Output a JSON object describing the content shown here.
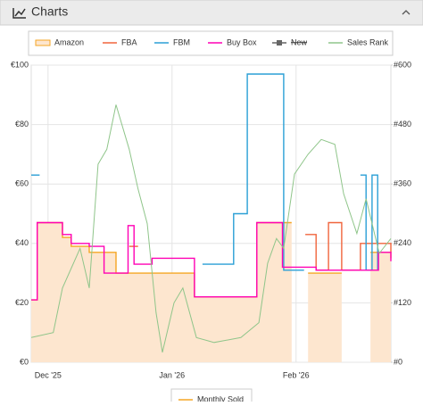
{
  "header": {
    "title": "Charts"
  },
  "chart_data": {
    "type": "line",
    "step": true,
    "xlim": [
      -4.2,
      85.7
    ],
    "xticks": [
      {
        "value": 0,
        "label": "Dec '25"
      },
      {
        "value": 31,
        "label": "Jan '26"
      },
      {
        "value": 62,
        "label": "Feb '26"
      }
    ],
    "ylim": [
      0,
      100
    ],
    "yticks": [
      {
        "value": 0,
        "label": "€0"
      },
      {
        "value": 20,
        "label": "€20"
      },
      {
        "value": 40,
        "label": "€40"
      },
      {
        "value": 60,
        "label": "€60"
      },
      {
        "value": 80,
        "label": "€80"
      },
      {
        "value": 100,
        "label": "€100"
      }
    ],
    "y2lim": [
      0,
      600
    ],
    "y2ticks": [
      {
        "value": 0,
        "label": "#0"
      },
      {
        "value": 120,
        "label": "#120"
      },
      {
        "value": 240,
        "label": "#240"
      },
      {
        "value": 360,
        "label": "#360"
      },
      {
        "value": 480,
        "label": "#480"
      },
      {
        "value": 600,
        "label": "#600"
      }
    ],
    "grid": true,
    "series": [
      {
        "name": "Amazon",
        "color": "#f5a623",
        "fill": "#fde6cf",
        "area": true,
        "x": [
          -4.2,
          -2.7,
          3.6,
          5.8,
          10.3,
          17.0,
          36.6,
          52.2,
          60.9,
          65.0,
          73.4,
          80.6,
          85.7
        ],
        "values": [
          21,
          47,
          42,
          39,
          37,
          30,
          22,
          47,
          null,
          30,
          null,
          37,
          35
        ]
      },
      {
        "name": "FBA",
        "color": "#f0643c",
        "x": [
          20.3,
          22.5,
          64.3,
          67.0,
          70.1,
          73.4,
          78.1,
          85.7
        ],
        "values": [
          39,
          null,
          43,
          31,
          47,
          31,
          40,
          37
        ]
      },
      {
        "name": "FBM",
        "color": "#2a9fd6",
        "x": [
          -4.2,
          -2.1,
          38.6,
          46.4,
          49.8,
          58.9,
          64.0,
          78.1,
          79.5,
          81.0,
          82.4
        ],
        "values": [
          63,
          null,
          33,
          50,
          97,
          31,
          null,
          63,
          31,
          63,
          31
        ]
      },
      {
        "name": "Buy Box",
        "color": "#ff00b4",
        "x": [
          -4.2,
          -2.7,
          3.6,
          5.8,
          10.3,
          14.0,
          20.0,
          21.5,
          26.0,
          36.6,
          52.2,
          58.6,
          67.0,
          82.6,
          85.7
        ],
        "values": [
          21,
          47,
          43,
          40,
          39,
          30,
          46,
          33,
          35,
          22,
          47,
          32,
          31,
          37,
          34
        ]
      },
      {
        "name": "New",
        "color": "#666666",
        "hidden": true,
        "x": [],
        "values": []
      },
      {
        "name": "Sales Rank",
        "color": "#8fc58a",
        "axis": "y2",
        "step": false,
        "x": [
          -4.2,
          1.3,
          3.6,
          8.0,
          10.3,
          12.5,
          14.7,
          17.0,
          20.3,
          22.5,
          24.8,
          27.0,
          28.6,
          31.5,
          33.7,
          37.1,
          41.5,
          48.2,
          52.7,
          54.9,
          57.1,
          58.9,
          61.6,
          65.0,
          68.3,
          71.7,
          73.9,
          77.2,
          79.5,
          82.8,
          85.7
        ],
        "values": [
          50,
          60,
          150,
          230,
          150,
          400,
          430,
          520,
          430,
          350,
          280,
          100,
          20,
          120,
          150,
          50,
          40,
          50,
          80,
          200,
          250,
          230,
          380,
          420,
          450,
          440,
          340,
          260,
          330,
          220,
          250
        ]
      }
    ],
    "extra_legend": {
      "name": "Monthly Sold",
      "color": "#f5a623"
    }
  }
}
